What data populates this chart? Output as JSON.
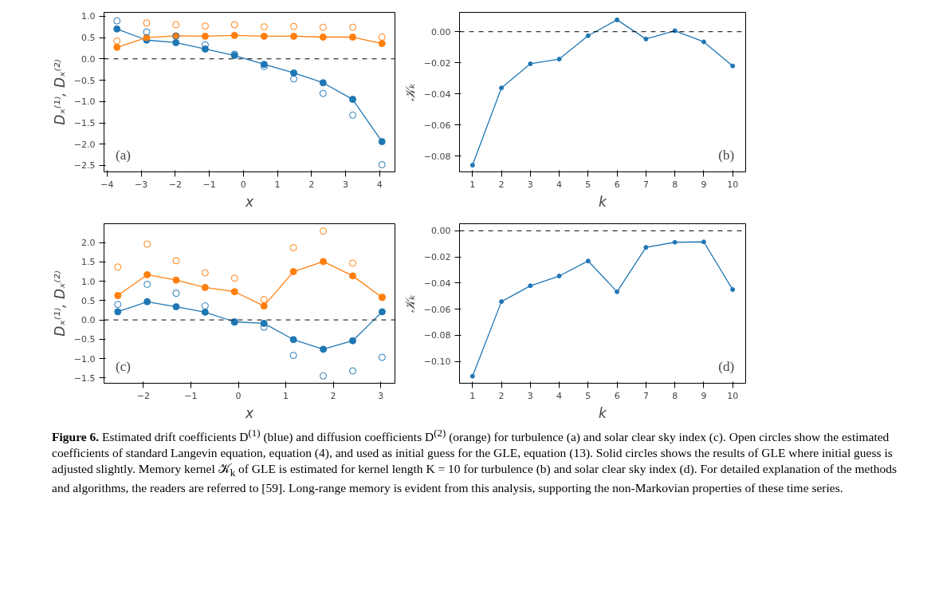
{
  "chart_data": [
    {
      "type": "line",
      "xlabel": "x",
      "ylabel": "Dₓ⁽¹⁾, Dₓ⁽²⁾",
      "x": [
        -3.71,
        -2.84,
        -1.98,
        -1.12,
        -0.26,
        0.61,
        1.48,
        2.34,
        3.21,
        4.07
      ],
      "xlim": [
        -4.09,
        4.45
      ],
      "xticks": [
        {
          "value": -4,
          "label": "−4"
        },
        {
          "value": -3,
          "label": "−3"
        },
        {
          "value": -2,
          "label": "−2"
        },
        {
          "value": -1,
          "label": "−1"
        },
        0,
        1,
        2,
        3,
        4
      ],
      "ylim": [
        -2.65,
        1.09
      ],
      "yticks": [
        {
          "value": -2.5,
          "label": "−2.5"
        },
        {
          "value": -2.0,
          "label": "−2.0"
        },
        {
          "value": -1.5,
          "label": "−1.5"
        },
        {
          "value": -1.0,
          "label": "−1.0"
        },
        {
          "value": -0.5,
          "label": "−0.5"
        },
        {
          "value": 0,
          "label": "0.0"
        },
        {
          "value": 0.5,
          "label": "0.5"
        },
        {
          "value": 1.0,
          "label": "1.0"
        }
      ],
      "grid": false,
      "marker": "circle",
      "series": [
        {
          "type": "scatter",
          "color": "#1f77b4",
          "values": [
            0.89,
            0.63,
            0.53,
            0.33,
            0.11,
            -0.18,
            -0.47,
            -0.81,
            -1.32,
            -2.48
          ]
        },
        {
          "type": "scatter",
          "color": "#ff7f0e",
          "values": [
            0.42,
            0.84,
            0.8,
            0.77,
            0.8,
            0.75,
            0.76,
            0.74,
            0.74,
            0.51
          ]
        },
        {
          "type": "line",
          "color": "#1f77b4",
          "values": [
            0.7,
            0.44,
            0.38,
            0.23,
            0.08,
            -0.13,
            -0.33,
            -0.56,
            -0.95,
            -1.94
          ]
        },
        {
          "type": "line",
          "color": "#ff7f0e",
          "values": [
            0.27,
            0.5,
            0.54,
            0.53,
            0.55,
            0.53,
            0.53,
            0.51,
            0.51,
            0.36
          ]
        }
      ],
      "ref_lines": [
        {
          "axis": "y",
          "value": 0,
          "color": "#000000",
          "line_style": "dashed"
        }
      ],
      "annotations": [
        "(a)"
      ]
    },
    {
      "type": "line",
      "xlabel": "k",
      "ylabel": "𝒦ₖ",
      "x": [
        1,
        2,
        3,
        4,
        5,
        6,
        7,
        8,
        9,
        10
      ],
      "xlim": [
        0.55,
        10.45
      ],
      "xticks": [
        1,
        2,
        3,
        4,
        5,
        6,
        7,
        8,
        9,
        10
      ],
      "ylim": [
        -0.09,
        0.0124
      ],
      "yticks": [
        {
          "value": -0.08,
          "label": "−0.08"
        },
        {
          "value": -0.06,
          "label": "−0.06"
        },
        {
          "value": -0.04,
          "label": "−0.04"
        },
        {
          "value": -0.02,
          "label": "−0.02"
        },
        {
          "value": 0,
          "label": "0.00"
        }
      ],
      "grid": false,
      "marker": "circle",
      "series": [
        {
          "type": "line",
          "color": "#1f77b4",
          "values": [
            -0.0857,
            -0.0361,
            -0.0206,
            -0.0176,
            -0.0026,
            0.0076,
            -0.0047,
            0.0006,
            -0.0065,
            -0.022
          ]
        }
      ],
      "ref_lines": [
        {
          "axis": "y",
          "value": 0,
          "color": "#000000",
          "line_style": "dashed"
        }
      ],
      "annotations": [
        "(b)"
      ]
    },
    {
      "type": "line",
      "xlabel": "x",
      "ylabel": "Dₓ⁽¹⁾, Dₓ⁽²⁾",
      "x": [
        -2.54,
        -1.92,
        -1.31,
        -0.7,
        -0.08,
        0.54,
        1.16,
        1.79,
        2.41,
        3.03
      ],
      "xlim": [
        -2.83,
        3.3
      ],
      "xticks": [
        {
          "value": -2,
          "label": "−2"
        },
        {
          "value": -1,
          "label": "−1"
        },
        0,
        1,
        2,
        3
      ],
      "ylim": [
        -1.64,
        2.49
      ],
      "yticks": [
        {
          "value": -1.5,
          "label": "−1.5"
        },
        {
          "value": -1.0,
          "label": "−1.0"
        },
        {
          "value": -0.5,
          "label": "−0.5"
        },
        {
          "value": 0,
          "label": "0.0"
        },
        {
          "value": 0.5,
          "label": "0.5"
        },
        {
          "value": 1.0,
          "label": "1.0"
        },
        {
          "value": 1.5,
          "label": "1.5"
        },
        {
          "value": 2.0,
          "label": "2.0"
        }
      ],
      "grid": false,
      "marker": "circle",
      "series": [
        {
          "type": "scatter",
          "color": "#1f77b4",
          "values": [
            0.4,
            0.92,
            0.69,
            0.36,
            -0.06,
            -0.19,
            -0.92,
            -1.45,
            -1.32,
            -0.97
          ]
        },
        {
          "type": "scatter",
          "color": "#ff7f0e",
          "values": [
            1.37,
            1.96,
            1.53,
            1.22,
            1.08,
            0.53,
            1.87,
            2.3,
            1.47,
            0.59
          ]
        },
        {
          "type": "line",
          "color": "#1f77b4",
          "values": [
            0.21,
            0.47,
            0.34,
            0.2,
            -0.05,
            -0.09,
            -0.51,
            -0.76,
            -0.54,
            0.21
          ]
        },
        {
          "type": "line",
          "color": "#ff7f0e",
          "values": [
            0.63,
            1.17,
            1.03,
            0.84,
            0.73,
            0.36,
            1.25,
            1.51,
            1.14,
            0.58
          ]
        }
      ],
      "ref_lines": [
        {
          "axis": "y",
          "value": 0,
          "color": "#000000",
          "line_style": "dashed"
        }
      ],
      "annotations": [
        "(c)"
      ]
    },
    {
      "type": "line",
      "xlabel": "k",
      "ylabel": "𝒦ₖ",
      "x": [
        1,
        2,
        3,
        4,
        5,
        6,
        7,
        8,
        9,
        10
      ],
      "xlim": [
        0.55,
        10.45
      ],
      "xticks": [
        1,
        2,
        3,
        4,
        5,
        6,
        7,
        8,
        9,
        10
      ],
      "ylim": [
        -0.1167,
        0.0054
      ],
      "yticks": [
        {
          "value": -0.1,
          "label": "−0.10"
        },
        {
          "value": -0.08,
          "label": "−0.08"
        },
        {
          "value": -0.06,
          "label": "−0.06"
        },
        {
          "value": -0.04,
          "label": "−0.04"
        },
        {
          "value": -0.02,
          "label": "−0.02"
        },
        {
          "value": 0,
          "label": "0.00"
        }
      ],
      "grid": false,
      "marker": "circle",
      "series": [
        {
          "type": "line",
          "color": "#1f77b4",
          "values": [
            -0.1113,
            -0.0542,
            -0.0421,
            -0.0346,
            -0.0231,
            -0.0467,
            -0.0127,
            -0.0088,
            -0.0085,
            -0.045
          ]
        }
      ],
      "ref_lines": [
        {
          "axis": "y",
          "value": 0,
          "color": "#000000",
          "line_style": "dashed"
        }
      ],
      "annotations": [
        "(d)",
        "Figure 6. Estimated drift coefficients D$^{(1)}$ (blue) and diffusion coefficients D$^{(2)}$ (orange) for turbulence (a) and solar clear sky index (c). Open circles show the estimated coefficients of standard Langevin equation, equation (4), and used as initial guess for the GLE, equation (13). Solid circles shows the results of GLE where initial guess is adjusted slightly. Memory kernel 𝒦$_{k}$ of GLE is estimated for kernel length K = 10 for turbulence (b) and solar clear sky index (d). For detailed explanation of the methods and algorithms, the readers are referred to [59]. Long-range memory is evident from this analysis, supporting the non-Markovian properties of these time series."
      ]
    }
  ]
}
